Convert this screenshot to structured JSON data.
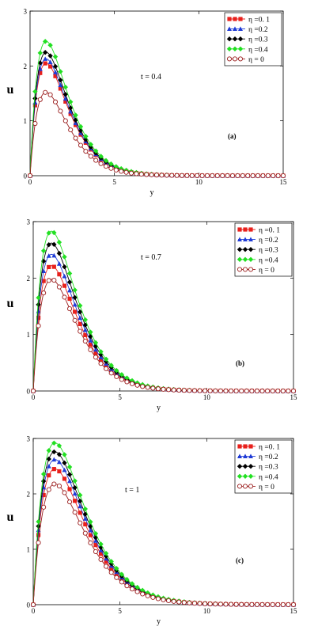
{
  "chart_data": [
    {
      "type": "line",
      "panel_label": "(a)",
      "annotation": "t = 0.4",
      "xlabel": "y",
      "ylabel": "u",
      "xlim": [
        0,
        15
      ],
      "ylim": [
        0,
        3
      ],
      "xticks": [
        "0",
        "5",
        "10",
        "15"
      ],
      "yticks": [
        "0",
        "1",
        "2",
        "3"
      ],
      "grid": false,
      "legend_position": "top-right",
      "series": [
        {
          "name": "η =0. 1",
          "peak": 2.05,
          "color": "#e8201c",
          "marker": "square"
        },
        {
          "name": "η =0.2",
          "peak": 2.13,
          "color": "#1f3bd6",
          "marker": "triangle"
        },
        {
          "name": "η =0.3",
          "peak": 2.25,
          "color": "#000000",
          "marker": "diamond"
        },
        {
          "name": "η =0.4",
          "peak": 2.45,
          "color": "#22e022",
          "marker": "diamond"
        },
        {
          "name": "η = 0",
          "peak": 1.52,
          "color": "#9a1c1c",
          "marker": "circle-open"
        }
      ]
    },
    {
      "type": "line",
      "panel_label": "(b)",
      "annotation": "t = 0.7",
      "xlabel": "y",
      "ylabel": "u",
      "xlim": [
        0,
        15
      ],
      "ylim": [
        0,
        3
      ],
      "xticks": [
        "0",
        "5",
        "10",
        "15"
      ],
      "yticks": [
        "0",
        "1",
        "2",
        "3"
      ],
      "grid": false,
      "legend_position": "top-right",
      "series": [
        {
          "name": "η =0. 1",
          "peak": 2.22,
          "color": "#e8201c",
          "marker": "square"
        },
        {
          "name": "η =0.2",
          "peak": 2.42,
          "color": "#1f3bd6",
          "marker": "triangle"
        },
        {
          "name": "η =0.3",
          "peak": 2.62,
          "color": "#000000",
          "marker": "diamond"
        },
        {
          "name": "η =0.4",
          "peak": 2.83,
          "color": "#22e022",
          "marker": "diamond"
        },
        {
          "name": "η = 0",
          "peak": 1.98,
          "color": "#9a1c1c",
          "marker": "circle-open"
        }
      ]
    },
    {
      "type": "line",
      "panel_label": "(c)",
      "annotation": "t = 1",
      "xlabel": "y",
      "ylabel": "u",
      "xlim": [
        0,
        15
      ],
      "ylim": [
        0,
        3
      ],
      "xticks": [
        "0",
        "5",
        "10",
        "15"
      ],
      "yticks": [
        "0",
        "1",
        "2",
        "3"
      ],
      "grid": false,
      "legend_position": "top-right",
      "series": [
        {
          "name": "η =0. 1",
          "peak": 2.45,
          "color": "#e8201c",
          "marker": "square"
        },
        {
          "name": "η =0.2",
          "peak": 2.62,
          "color": "#1f3bd6",
          "marker": "triangle"
        },
        {
          "name": "η =0.3",
          "peak": 2.76,
          "color": "#000000",
          "marker": "diamond"
        },
        {
          "name": "η =0.4",
          "peak": 2.92,
          "color": "#22e022",
          "marker": "diamond"
        },
        {
          "name": "η = 0",
          "peak": 2.18,
          "color": "#9a1c1c",
          "marker": "circle-open"
        }
      ]
    }
  ]
}
